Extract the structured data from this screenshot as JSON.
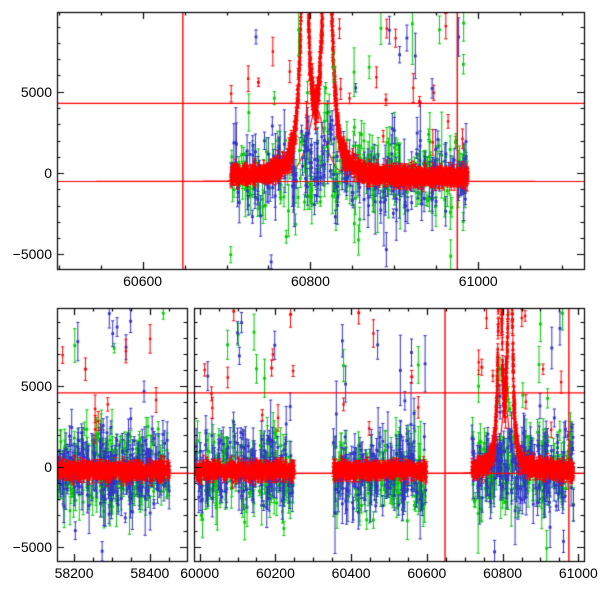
{
  "figure": {
    "background": "#ffffff",
    "frame_color": "#000000",
    "reference_line_color": "#ff0000",
    "description": "Two stacked light-curve panels of flux vs MJD with red, green and blue photometric series with error bars; bottom panel has a broken time axis; a large double-peaked flare occurs near MJD 60800; red horizontal threshold/baseline lines and red vertical window-marker lines are overlaid."
  },
  "chart_data": [
    {
      "id": "top-panel",
      "type": "scatter",
      "title": "",
      "xlabel": "",
      "ylabel": "",
      "x_range": [
        60498,
        61126
      ],
      "y_range": [
        -5900,
        9900
      ],
      "grid": false,
      "legend": null,
      "x_major_ticks": [
        {
          "value": 60600,
          "label": "60600"
        },
        {
          "value": 60800,
          "label": "60800"
        },
        {
          "value": 61000,
          "label": "61000"
        }
      ],
      "x_minor_tick_step": 50,
      "y_major_ticks": [
        {
          "value": -5000,
          "label": "−5000"
        },
        {
          "value": 0,
          "label": "0"
        },
        {
          "value": 5000,
          "label": "5000"
        }
      ],
      "y_minor_tick_step": 1000,
      "series": [
        {
          "name": "red-series",
          "color": "#ff0000",
          "marker": "square",
          "errorbars": true
        },
        {
          "name": "green-series",
          "color": "#00cc00",
          "marker": "square",
          "errorbars": true
        },
        {
          "name": "blue-series",
          "color": "#3333cc",
          "marker": "square",
          "errorbars": true
        }
      ],
      "reference_lines": {
        "horizontal": [
          4280,
          -520
        ],
        "vertical": [
          60648,
          60975
        ]
      },
      "quiescent_level": -260,
      "clusters": [
        {
          "x0": 60705,
          "x1": 60988,
          "has_flare": true,
          "red_points": 1500,
          "green_points": 240,
          "blue_points": 240,
          "extra_red_near_flare": 350
        }
      ],
      "flare": {
        "off_scale_at_top": true,
        "peaks": [
          {
            "center": 60793,
            "width": 4.2,
            "amplitude": 20000
          },
          {
            "center": 60820,
            "width": 5.0,
            "amplitude": 22000
          }
        ]
      },
      "model_curve": {
        "color": "#ff0000",
        "baseline": -520,
        "center": 60807,
        "amplitude": 4500,
        "width": 14,
        "shape_power": 1.2
      },
      "featured_outliers": [
        {
          "x": 60738,
          "y": 5580,
          "e": 260,
          "s": "r"
        },
        {
          "x": 60757,
          "y": 4600,
          "e": 400,
          "s": "g"
        },
        {
          "x": 60786,
          "y": 8800,
          "e": 1600,
          "s": "g"
        },
        {
          "x": 60828,
          "y": 6500,
          "e": 900,
          "s": "g"
        },
        {
          "x": 60852,
          "y": 6200,
          "e": 1500,
          "s": "g"
        },
        {
          "x": 60870,
          "y": 6500,
          "e": 700,
          "s": "g"
        },
        {
          "x": 60884,
          "y": 8900,
          "e": 1000,
          "s": "g"
        },
        {
          "x": 60890,
          "y": 4500,
          "e": 350,
          "s": "r"
        },
        {
          "x": 60915,
          "y": 8300,
          "e": 800,
          "s": "b"
        },
        {
          "x": 60925,
          "y": 7200,
          "e": 1400,
          "s": "b"
        },
        {
          "x": 60930,
          "y": 4400,
          "e": 300,
          "s": "r"
        },
        {
          "x": 60945,
          "y": 5200,
          "e": 600,
          "s": "b"
        }
      ]
    },
    {
      "id": "bottom-panel",
      "type": "scatter",
      "title": "",
      "xlabel": "",
      "ylabel": "",
      "y_range": [
        -5900,
        9900
      ],
      "grid": false,
      "legend": null,
      "axis_break": {
        "left_end": 58498,
        "right_start": 59985
      },
      "segments": [
        {
          "x_range": [
            58155,
            58498
          ],
          "x_major_ticks": [
            {
              "value": 58200,
              "label": "58200"
            },
            {
              "value": 58400,
              "label": "58400"
            }
          ],
          "x_minor_tick_step": 50,
          "clusters": [
            {
              "x0": 58158,
              "x1": 58452,
              "has_flare": false,
              "red_points": 520,
              "green_points": 210,
              "blue_points": 210
            }
          ]
        },
        {
          "x_range": [
            59985,
            61015
          ],
          "x_major_ticks": [
            {
              "value": 60000,
              "label": "60000"
            },
            {
              "value": 60200,
              "label": "60200"
            },
            {
              "value": 60400,
              "label": "60400"
            },
            {
              "value": 60600,
              "label": "60600"
            },
            {
              "value": 60800,
              "label": "60800"
            },
            {
              "value": 61000,
              "label": "61000"
            }
          ],
          "x_minor_tick_step": 50,
          "clusters": [
            {
              "x0": 59990,
              "x1": 60250,
              "has_flare": false,
              "red_points": 480,
              "green_points": 150,
              "blue_points": 150
            },
            {
              "x0": 60352,
              "x1": 60600,
              "has_flare": false,
              "red_points": 460,
              "green_points": 150,
              "blue_points": 150
            },
            {
              "x0": 60718,
              "x1": 60988,
              "has_flare": true,
              "red_points": 700,
              "green_points": 170,
              "blue_points": 170,
              "extra_red_near_flare": 220
            }
          ]
        }
      ],
      "y_major_ticks": [
        {
          "value": -5000,
          "label": "−5000"
        },
        {
          "value": 0,
          "label": "0"
        },
        {
          "value": 5000,
          "label": "5000"
        }
      ],
      "y_minor_tick_step": 1000,
      "series": [
        {
          "name": "red-series",
          "color": "#ff0000",
          "marker": "square",
          "errorbars": true
        },
        {
          "name": "green-series",
          "color": "#00cc00",
          "marker": "square",
          "errorbars": true
        },
        {
          "name": "blue-series",
          "color": "#3333cc",
          "marker": "square",
          "errorbars": true
        }
      ],
      "reference_lines": {
        "horizontal": [
          4600,
          -430
        ],
        "vertical": [
          60648,
          60975
        ]
      },
      "quiescent_level": -260,
      "flare": {
        "off_scale_at_top": true,
        "peaks": [
          {
            "center": 60793,
            "width": 4.2,
            "amplitude": 20000
          },
          {
            "center": 60820,
            "width": 5.0,
            "amplitude": 22000
          }
        ]
      },
      "model_curve": {
        "color": "#ff0000",
        "baseline": -430,
        "center": 60807,
        "amplitude": 4500,
        "width": 14,
        "shape_power": 1.2
      },
      "featured_outliers": [
        {
          "x": 58210,
          "y": 7800,
          "e": 1200,
          "s": "b"
        },
        {
          "x": 58230,
          "y": 6080,
          "e": 700,
          "s": "r"
        },
        {
          "x": 58293,
          "y": 9550,
          "e": 900,
          "s": "b"
        },
        {
          "x": 58302,
          "y": 8300,
          "e": 800,
          "s": "b"
        },
        {
          "x": 60090,
          "y": 9700,
          "e": 600,
          "s": "r"
        },
        {
          "x": 60100,
          "y": 8350,
          "e": 700,
          "s": "b"
        },
        {
          "x": 60150,
          "y": 6100,
          "e": 900,
          "s": "g"
        },
        {
          "x": 60190,
          "y": 6150,
          "e": 500,
          "s": "r"
        },
        {
          "x": 60240,
          "y": 9500,
          "e": 800,
          "s": "r"
        },
        {
          "x": 60380,
          "y": 6300,
          "e": 1000,
          "s": "g"
        },
        {
          "x": 60420,
          "y": 9600,
          "e": 700,
          "s": "r"
        },
        {
          "x": 60470,
          "y": 7600,
          "e": 900,
          "s": "b"
        },
        {
          "x": 60530,
          "y": 6000,
          "e": 2200,
          "s": "b"
        },
        {
          "x": 60560,
          "y": 5600,
          "e": 400,
          "s": "r"
        },
        {
          "x": 60745,
          "y": 6200,
          "e": 500,
          "s": "r"
        },
        {
          "x": 60900,
          "y": 8900,
          "e": 1100,
          "s": "g"
        },
        {
          "x": 60930,
          "y": 7400,
          "e": 1300,
          "s": "b"
        }
      ]
    }
  ]
}
